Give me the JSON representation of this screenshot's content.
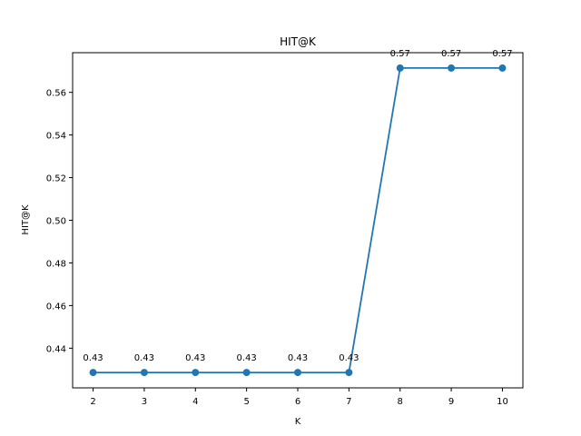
{
  "chart_data": {
    "type": "line",
    "title": "HIT@K",
    "xlabel": "K",
    "ylabel": "HIT@K",
    "x": [
      2,
      3,
      4,
      5,
      6,
      7,
      8,
      9,
      10
    ],
    "series": [
      {
        "values": [
          0.4286,
          0.4286,
          0.4286,
          0.4286,
          0.4286,
          0.4286,
          0.5714,
          0.5714,
          0.5714
        ],
        "data_labels": [
          "0.43",
          "0.43",
          "0.43",
          "0.43",
          "0.43",
          "0.43",
          "0.57",
          "0.57",
          "0.57"
        ],
        "color": "#1f77b4",
        "marker": "circle"
      }
    ],
    "xticks": [
      "2",
      "3",
      "4",
      "5",
      "6",
      "7",
      "8",
      "9",
      "10"
    ],
    "yticks": [
      "0.44",
      "0.46",
      "0.48",
      "0.50",
      "0.52",
      "0.54",
      "0.56"
    ],
    "ytick_values": [
      0.44,
      0.46,
      0.48,
      0.5,
      0.52,
      0.54,
      0.56
    ],
    "xlim": [
      1.6,
      10.4
    ],
    "ylim": [
      0.4214,
      0.5786
    ],
    "grid": false,
    "legend": "none"
  }
}
